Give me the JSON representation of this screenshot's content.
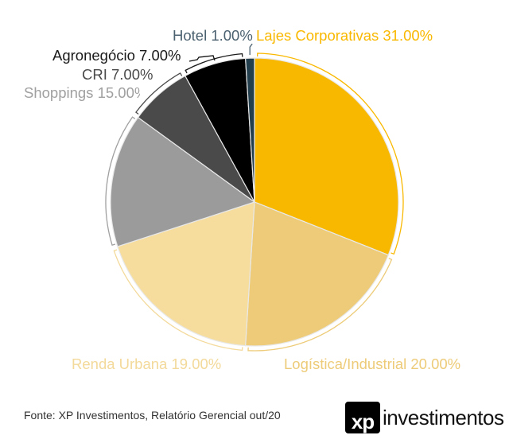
{
  "chart_data": {
    "type": "pie",
    "title": "",
    "slices": [
      {
        "label": "Lajes Corporativas",
        "value": 31.0,
        "text": "Lajes Corporativas 31.00%",
        "color": "#F9B800",
        "label_color": "#F9B800"
      },
      {
        "label": "Logística/Industrial",
        "value": 20.0,
        "text": "Logística/Industrial 20.00%",
        "color": "#EDCB78",
        "label_color": "#EDCB78"
      },
      {
        "label": "Renda Urbana",
        "value": 19.0,
        "text": "Renda Urbana 19.00%",
        "color": "#F6DD9D",
        "label_color": "#F3D99A"
      },
      {
        "label": "Shoppings",
        "value": 15.0,
        "text": "Shoppings 15.00%",
        "color": "#9B9B9B",
        "label_color": "#A0A0A0"
      },
      {
        "label": "CRI",
        "value": 7.0,
        "text": "CRI 7.00%",
        "color": "#4A4A4A",
        "label_color": "#4A4A4A"
      },
      {
        "label": "Agronegócio",
        "value": 7.0,
        "text": "Agronegócio 7.00%",
        "color": "#000000",
        "label_color": "#1A1A1A"
      },
      {
        "label": "Hotel",
        "value": 1.0,
        "text": "Hotel 1.00%",
        "color": "#233F4E",
        "label_color": "#4B6170"
      }
    ]
  },
  "source": "Fonte: XP Investimentos, Relatório Gerencial out/20",
  "logo": {
    "mark": "xp",
    "word": "investimentos"
  }
}
